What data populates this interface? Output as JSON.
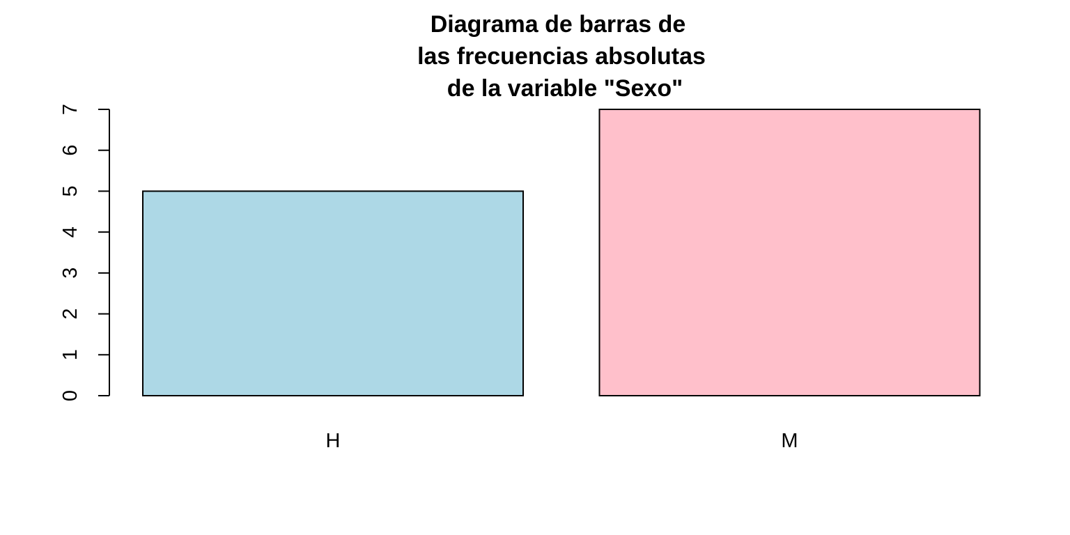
{
  "chart_data": {
    "type": "bar",
    "title_lines": [
      "Diagrama de barras de",
      "las frecuencias absolutas",
      "de la variable \"Sexo\""
    ],
    "categories": [
      "H",
      "M"
    ],
    "values": [
      5,
      7
    ],
    "colors": [
      "#ADD8E6",
      "#FFC0CB"
    ],
    "ylim": [
      0,
      7
    ],
    "yticks": [
      0,
      1,
      2,
      3,
      4,
      5,
      6,
      7
    ],
    "xlabel": "",
    "ylabel": "",
    "grid": false,
    "legend": "none"
  }
}
